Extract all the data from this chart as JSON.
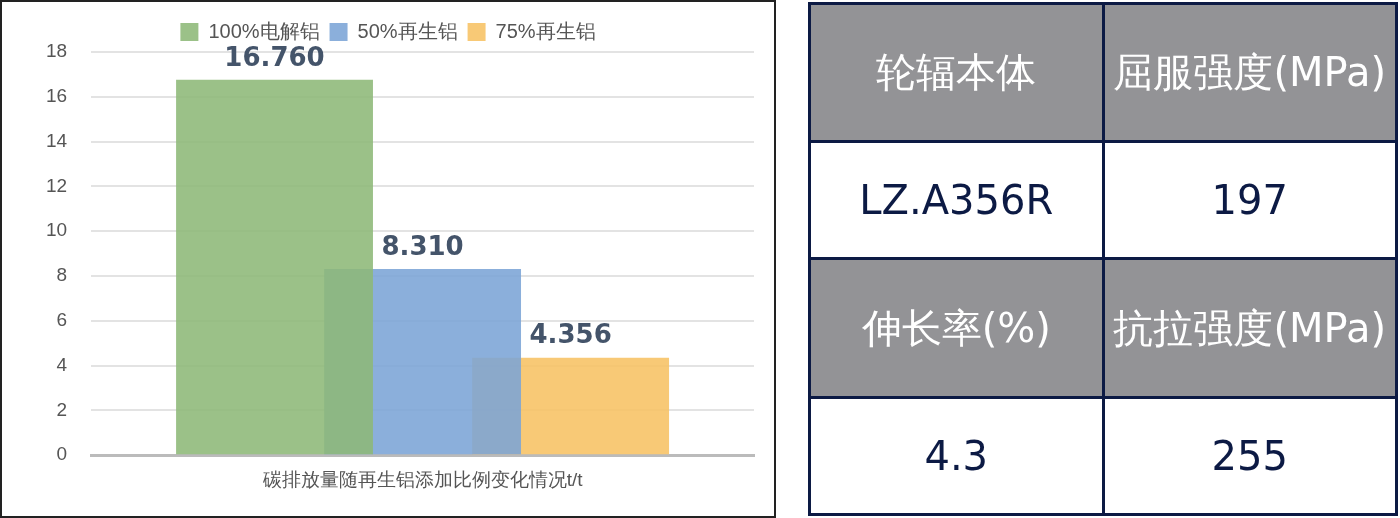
{
  "chart_data": [
    {
      "type": "bar",
      "categories": [
        "碳排放量随再生铝添加比例变化情况t/t"
      ],
      "series": [
        {
          "name": "100%电解铝",
          "color": "#8db878",
          "values": [
            16.76
          ]
        },
        {
          "name": "50%再生铝",
          "color": "#7ba4d6",
          "values": [
            8.31
          ]
        },
        {
          "name": "75%再生铝",
          "color": "#f7c163",
          "values": [
            4.356
          ]
        }
      ],
      "value_labels": [
        "16.760",
        "8.310",
        "4.356"
      ],
      "ylim": [
        0,
        18
      ],
      "yticks": [
        0,
        2,
        4,
        6,
        8,
        10,
        12,
        14,
        16,
        18
      ],
      "grid": "y",
      "legend": "top"
    },
    {
      "type": "other",
      "annotations": [
        "轮辐本体",
        "屈服强度(MPa)",
        "LZ.A356R",
        "197",
        "伸长率(%)",
        "抗拉强度(MPa)",
        "4.3",
        "255"
      ]
    }
  ]
}
